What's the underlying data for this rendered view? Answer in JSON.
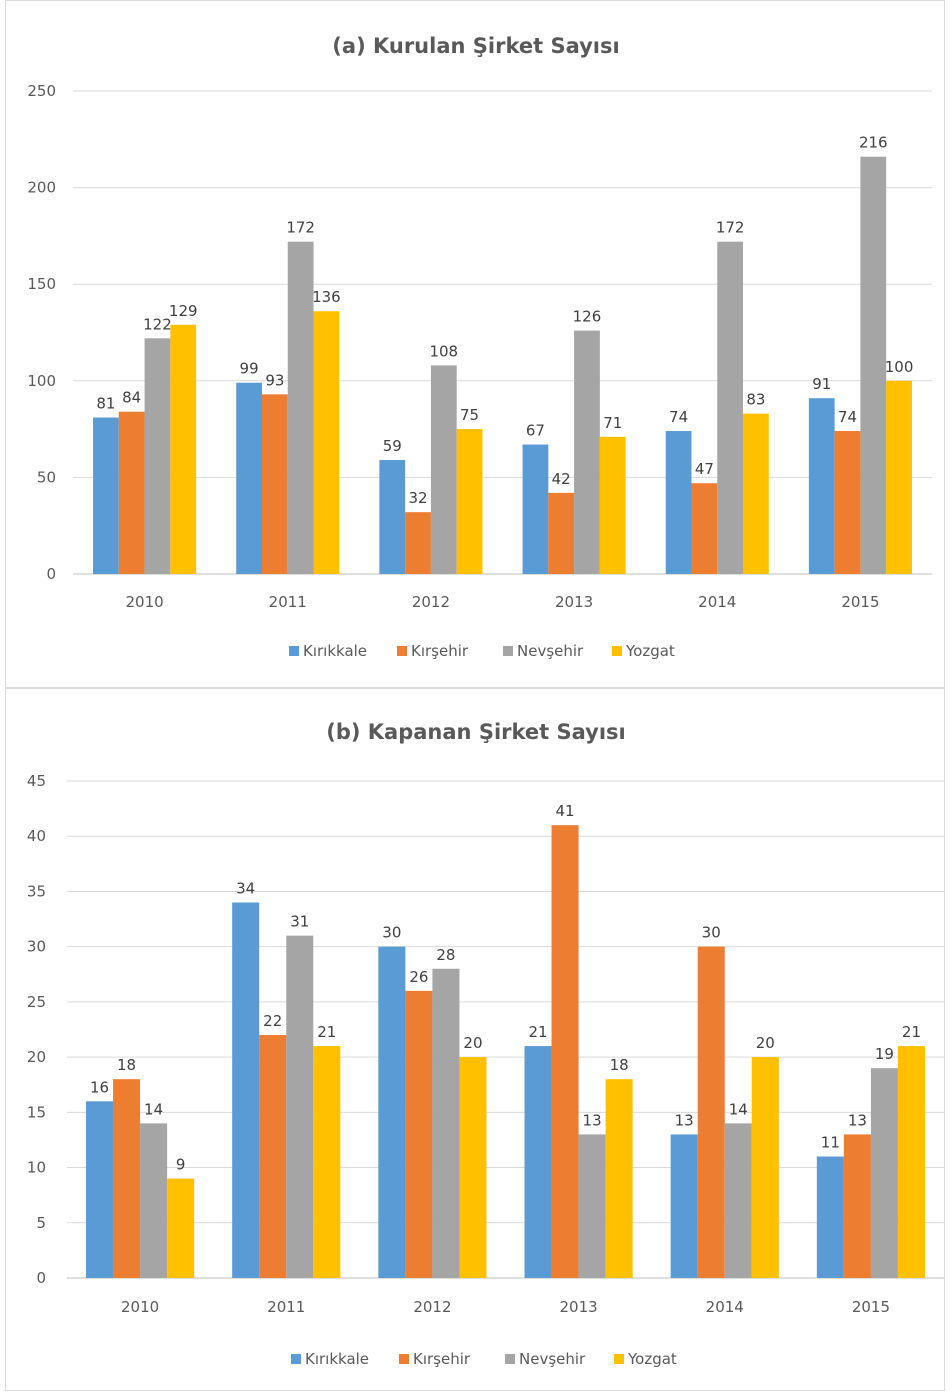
{
  "chart_data": [
    {
      "type": "bar",
      "title": "(a) Kurulan Şirket Sayısı",
      "categories": [
        "2010",
        "2011",
        "2012",
        "2013",
        "2014",
        "2015"
      ],
      "series": [
        {
          "name": "Kırıkkale",
          "color": "#5B9BD5",
          "values": [
            81,
            99,
            59,
            67,
            74,
            91
          ]
        },
        {
          "name": "Kırşehir",
          "color": "#ED7D31",
          "values": [
            84,
            93,
            32,
            42,
            47,
            74
          ]
        },
        {
          "name": "Nevşehir",
          "color": "#A5A5A5",
          "values": [
            122,
            172,
            108,
            126,
            172,
            216
          ]
        },
        {
          "name": "Yozgat",
          "color": "#FFC000",
          "values": [
            129,
            136,
            75,
            71,
            83,
            100
          ]
        }
      ],
      "ylim": [
        0,
        250
      ],
      "yticks": [
        0,
        50,
        100,
        150,
        200,
        250
      ],
      "grid": true,
      "legend": "bottom",
      "data_labels": true
    },
    {
      "type": "bar",
      "title": "(b) Kapanan Şirket Sayısı",
      "categories": [
        "2010",
        "2011",
        "2012",
        "2013",
        "2014",
        "2015"
      ],
      "series": [
        {
          "name": "Kırıkkale",
          "color": "#5B9BD5",
          "values": [
            16,
            34,
            30,
            21,
            13,
            11
          ]
        },
        {
          "name": "Kırşehir",
          "color": "#ED7D31",
          "values": [
            18,
            22,
            26,
            41,
            30,
            13
          ]
        },
        {
          "name": "Nevşehir",
          "color": "#A5A5A5",
          "values": [
            14,
            31,
            28,
            13,
            14,
            19
          ]
        },
        {
          "name": "Yozgat",
          "color": "#FFC000",
          "values": [
            9,
            21,
            20,
            18,
            20,
            21
          ]
        }
      ],
      "ylim": [
        0,
        45
      ],
      "yticks": [
        0,
        5,
        10,
        15,
        20,
        25,
        30,
        35,
        40,
        45
      ],
      "grid": true,
      "legend": "bottom",
      "data_labels": true
    }
  ]
}
